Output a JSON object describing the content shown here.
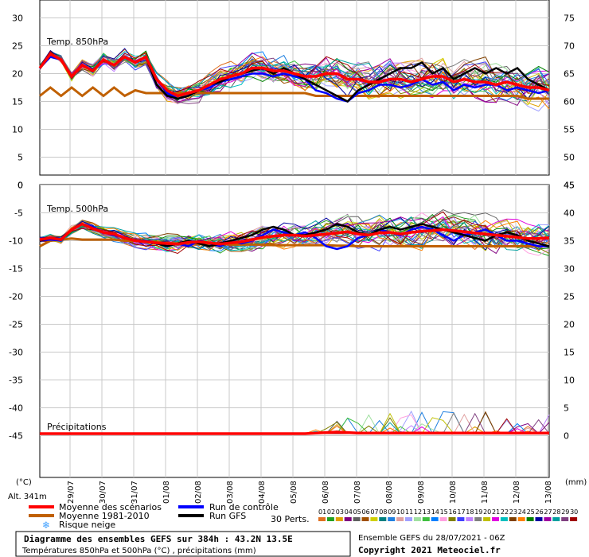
{
  "chart_data": {
    "type": "line",
    "panels": [
      {
        "title": "Temp. 850hPa",
        "ylim": [
          0,
          30
        ],
        "left_ticks": [
          "30",
          "25",
          "20",
          "15",
          "10",
          "5",
          "0"
        ],
        "right_ticks": [
          "75",
          "70",
          "65",
          "60",
          "55",
          "50",
          "45"
        ],
        "series": [
          {
            "name": "Moyenne des scénarios",
            "color": "#ff0000",
            "values": [
              21,
              23.5,
              22.5,
              19.5,
              21.5,
              20.5,
              22.5,
              21.5,
              23,
              22,
              23,
              19,
              17,
              16,
              16.5,
              17,
              18,
              19,
              19.5,
              20,
              21,
              21,
              20.5,
              20.5,
              20,
              19.5,
              19.5,
              20,
              20,
              19,
              19,
              18.5,
              18.5,
              19,
              19,
              18.5,
              19,
              19.5,
              19.5,
              18.5,
              19,
              18.5,
              18.5,
              18,
              18.5,
              18,
              17.5,
              17.5,
              17
            ]
          },
          {
            "name": "Moyenne 1981-2010",
            "color": "#c06000",
            "values": [
              16,
              17.5,
              16,
              17.5,
              16,
              17.5,
              16,
              17.5,
              16,
              17,
              16.5,
              16.5,
              16.5,
              16.5,
              16.5,
              16.5,
              16.5,
              16.5,
              16.5,
              16.5,
              16.5,
              16.5,
              16.5,
              16.5,
              16.5,
              16.5,
              16,
              16,
              16,
              16,
              16,
              16,
              16,
              16,
              16,
              16,
              16,
              16,
              16,
              16,
              16,
              16,
              16,
              16,
              16,
              16,
              15.5,
              15.5,
              15.5
            ]
          },
          {
            "name": "Run de contrôle",
            "color": "#0000ff",
            "values": [
              21,
              23,
              22.5,
              19.5,
              21.5,
              20.5,
              22.5,
              21.5,
              23,
              22,
              23,
              19,
              16.5,
              15.5,
              16,
              17,
              17.5,
              18.5,
              19,
              19.5,
              20,
              20,
              19.5,
              20,
              19.5,
              19,
              17,
              16.5,
              15.5,
              15,
              16.5,
              17,
              18,
              18,
              17.5,
              18,
              19,
              18,
              18.5,
              17,
              18,
              17.5,
              18,
              18,
              17,
              17.5,
              17,
              16.5,
              17
            ]
          },
          {
            "name": "Run GFS",
            "color": "#000000",
            "values": [
              21,
              23.5,
              22.5,
              19.5,
              21.5,
              20.5,
              22.5,
              21.5,
              23,
              22,
              23,
              18,
              16,
              15.5,
              16,
              17,
              18,
              18.5,
              19.5,
              20,
              20.5,
              21,
              20,
              21,
              20,
              19,
              18,
              17,
              16,
              15,
              17,
              18,
              19,
              20,
              21,
              21,
              22,
              20,
              21,
              19,
              20,
              21,
              20,
              21,
              20,
              21,
              19,
              18,
              17
            ]
          }
        ]
      },
      {
        "title": "Temp. 500hPa",
        "ylim": [
          -45,
          0
        ],
        "left_ticks": [
          "0",
          "-5",
          "-10",
          "-15",
          "-20",
          "-25",
          "-30",
          "-35",
          "-40",
          "-45"
        ],
        "right_ticks": [
          "45",
          "40",
          "35",
          "30",
          "25",
          "20",
          "15",
          "10",
          "5",
          "0"
        ],
        "series": [
          {
            "name": "Moyenne des scénarios",
            "color": "#ff0000",
            "values": [
              -9.8,
              -9.5,
              -9.8,
              -8,
              -7,
              -7.8,
              -8.5,
              -8.8,
              -9.5,
              -10,
              -10.2,
              -10.4,
              -10.5,
              -10.6,
              -10.3,
              -10.2,
              -10.4,
              -10.6,
              -10.4,
              -10.2,
              -9.8,
              -9.4,
              -9.2,
              -9,
              -9,
              -9.2,
              -9,
              -8.8,
              -8.6,
              -8.4,
              -8.8,
              -9,
              -8.6,
              -8.5,
              -8.8,
              -8.5,
              -8.3,
              -8.2,
              -8,
              -8.2,
              -8.4,
              -8.6,
              -8.8,
              -9,
              -9.2,
              -9.4,
              -9.6,
              -9.6,
              -9.5
            ]
          },
          {
            "name": "Moyenne 1981-2010",
            "color": "#c06000",
            "values": [
              -11,
              -10,
              -9.8,
              -9.6,
              -9.8,
              -9.8,
              -9.8,
              -9.8,
              -10,
              -10,
              -10.2,
              -10.3,
              -10.4,
              -10.5,
              -10.5,
              -10.6,
              -10.6,
              -10.6,
              -10.7,
              -10.7,
              -10.7,
              -10.7,
              -10.8,
              -10.8,
              -10.8,
              -10.8,
              -10.8,
              -10.8,
              -10.9,
              -10.9,
              -11,
              -11,
              -11,
              -11,
              -11,
              -11,
              -11,
              -11,
              -11,
              -11,
              -11,
              -11,
              -11,
              -11,
              -11,
              -11,
              -11,
              -11,
              -11
            ]
          },
          {
            "name": "Run de contrôle",
            "color": "#0000ff",
            "values": [
              -10,
              -9.8,
              -10,
              -8,
              -7,
              -7.5,
              -8.5,
              -9,
              -9.5,
              -10,
              -10,
              -10.5,
              -11,
              -10.5,
              -11,
              -10,
              -10.5,
              -11,
              -10,
              -10.5,
              -10,
              -9,
              -8,
              -8.5,
              -9,
              -8.5,
              -9.5,
              -11,
              -11.5,
              -11,
              -9.5,
              -9,
              -8,
              -8.5,
              -9,
              -8,
              -7.5,
              -8,
              -9,
              -10,
              -9,
              -8.5,
              -8,
              -9,
              -10,
              -10,
              -10.5,
              -11,
              -11
            ]
          },
          {
            "name": "Run GFS",
            "color": "#000000",
            "values": [
              -10,
              -9.5,
              -9.8,
              -8,
              -7,
              -7.8,
              -8.5,
              -8.8,
              -9.5,
              -10,
              -10.2,
              -10.5,
              -11,
              -10.5,
              -10,
              -10.5,
              -11,
              -10.5,
              -10,
              -9.5,
              -9,
              -8,
              -7.5,
              -8,
              -9,
              -9,
              -8.5,
              -8,
              -7,
              -7.5,
              -8.5,
              -9,
              -8,
              -7.5,
              -8,
              -7.5,
              -7,
              -7.5,
              -8,
              -8.5,
              -9,
              -9.5,
              -10,
              -9,
              -8.5,
              -9,
              -10,
              -10.5,
              -11
            ]
          }
        ]
      },
      {
        "title": "Précipitations",
        "series": [
          {
            "name": "Moyenne des scénarios",
            "color": "#ff0000",
            "values": [
              0,
              0,
              0,
              0,
              0,
              0,
              0,
              0,
              0,
              0,
              0,
              0,
              0,
              0,
              0,
              0,
              0,
              0,
              0,
              0,
              0,
              0,
              0,
              0,
              0,
              0,
              0.1,
              0.2,
              0.3,
              0.2,
              0.1,
              0.1,
              0.1,
              0.1,
              0.1,
              0.1,
              0.1,
              0.1,
              0.1,
              0.1,
              0.1,
              0.1,
              0.1,
              0.1,
              0.1,
              0.1,
              0.1,
              0.1,
              0.1
            ]
          }
        ]
      }
    ],
    "x_labels": [
      "29/07",
      "30/07",
      "31/07",
      "01/08",
      "02/08",
      "03/08",
      "04/08",
      "05/08",
      "06/08",
      "07/08",
      "08/08",
      "09/08",
      "10/08",
      "11/08",
      "12/08",
      "13/08"
    ],
    "perturbation_labels": [
      "01",
      "02",
      "03",
      "04",
      "05",
      "06",
      "07",
      "08",
      "09",
      "10",
      "11",
      "12",
      "13",
      "14",
      "15",
      "16",
      "17",
      "18",
      "19",
      "20",
      "21",
      "22",
      "23",
      "24",
      "25",
      "26",
      "27",
      "28",
      "29",
      "30"
    ],
    "perturbation_colors": [
      "#e07020",
      "#20a020",
      "#e0a000",
      "#800080",
      "#606060",
      "#a05000",
      "#d0d000",
      "#008080",
      "#2080e0",
      "#e0a0a0",
      "#a0a0ff",
      "#a0e0a0",
      "#40c040",
      "#0080ff",
      "#ffa0e0",
      "#808000",
      "#4040ff",
      "#c080ff",
      "#808080",
      "#c0c000",
      "#e000e0",
      "#00c0c0",
      "#804000",
      "#ff8000",
      "#008000",
      "#0000a0",
      "#a000a0",
      "#00a0a0",
      "#804080",
      "#a00000"
    ]
  },
  "labels": {
    "unit_left": "(°C)",
    "unit_right": "(mm)",
    "altitude": "Alt. 341m",
    "perts_count": "30 Perts.",
    "legend_mean": "Moyenne des scénarios",
    "legend_clim": "Moyenne 1981-2010",
    "legend_snow": "Risque neige",
    "legend_control": "Run de contrôle",
    "legend_gfs": "Run GFS",
    "footer_title": "Diagramme des ensembles GEFS sur 384h : 43.2N 13.5E",
    "footer_sub": "Températures 850hPa et 500hPa (°C) , précipitations (mm)",
    "footer_run": "Ensemble GEFS du 28/07/2021 - 06Z",
    "footer_copyright": "Copyright 2021 Meteociel.fr"
  },
  "colors": {
    "mean": "#ff0000",
    "climatology": "#c06000",
    "control": "#0000ff",
    "gfs": "#000000",
    "grid": "#c8c8c8",
    "snow": "#40a0ff"
  }
}
